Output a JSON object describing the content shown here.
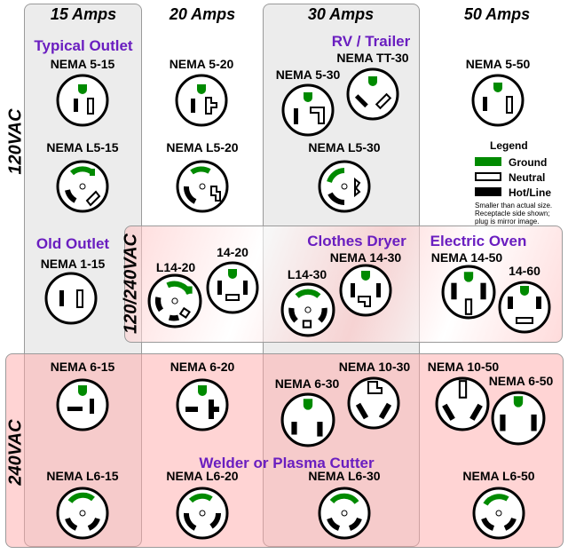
{
  "columns": [
    "15 Amps",
    "20 Amps",
    "30 Amps",
    "50 Amps"
  ],
  "rows": [
    "120VAC",
    "120/240VAC",
    "240VAC"
  ],
  "categories": {
    "typical": "Typical Outlet",
    "rv": "RV / Trailer",
    "old": "Old Outlet",
    "dryer": "Clothes Dryer",
    "oven": "Electric Oven",
    "welder": "Welder or Plasma Cutter"
  },
  "outlets": {
    "n5_15": "NEMA 5-15",
    "n5_20": "NEMA 5-20",
    "n5_30": "NEMA 5-30",
    "ntt30": "NEMA TT-30",
    "n5_50": "NEMA 5-50",
    "l5_15": "NEMA L5-15",
    "l5_20": "NEMA L5-20",
    "l5_30": "NEMA L5-30",
    "n1_15": "NEMA 1-15",
    "l14_20": "L14-20",
    "n14_20": "14-20",
    "l14_30": "L14-30",
    "n14_30": "NEMA 14-30",
    "n14_50": "NEMA 14-50",
    "n14_60": "14-60",
    "n6_15": "NEMA 6-15",
    "n6_20": "NEMA 6-20",
    "n6_30": "NEMA 6-30",
    "n10_30": "NEMA 10-30",
    "n10_50": "NEMA 10-50",
    "n6_50": "NEMA 6-50",
    "l6_15": "NEMA L6-15",
    "l6_20": "NEMA L6-20",
    "l6_30": "NEMA L6-30",
    "l6_50": "NEMA L6-50"
  },
  "legend": {
    "title": "Legend",
    "ground": "Ground",
    "neutral": "Neutral",
    "hot": "Hot/Line",
    "note": "Smaller than actual size. Receptacle side shown; plug is mirror image.",
    "colors": {
      "ground": "#008a00",
      "neutral": "#ffffff",
      "hot": "#000000"
    }
  }
}
